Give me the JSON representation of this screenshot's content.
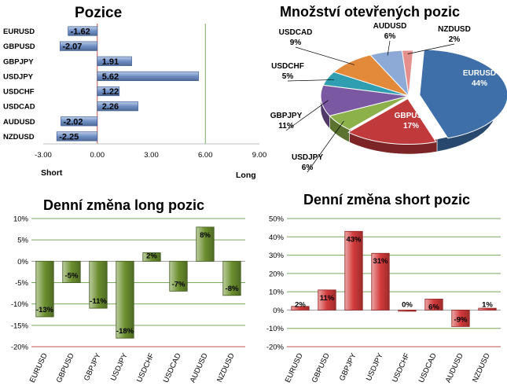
{
  "chart_data": [
    {
      "type": "bar",
      "orientation": "horizontal",
      "title": "Pozice",
      "categories": [
        "EURUSD",
        "GBPUSD",
        "GBPJPY",
        "USDJPY",
        "USDCHF",
        "USDCAD",
        "AUDUSD",
        "NZDUSD"
      ],
      "values": [
        -1.62,
        -2.07,
        1.91,
        5.62,
        1.22,
        2.26,
        -2.02,
        -2.25
      ],
      "value_labels": [
        "-1.62",
        "-2.07",
        "1.91",
        "5.62",
        "1.22",
        "2.26",
        "-2.02",
        "-2.25"
      ],
      "xlim": [
        -3,
        9
      ],
      "xticks": [
        -3,
        0,
        3,
        6,
        9
      ],
      "xtick_labels": [
        "-3.00",
        "0.00",
        "3.00",
        "6.00",
        "9.00"
      ],
      "axis_end_labels": {
        "left": "Short",
        "right": "Long"
      },
      "bar_color": "#6f8fc6"
    },
    {
      "type": "pie",
      "title": "Množství otevřených pozic",
      "labels": [
        "EURUSD",
        "GBPUSD",
        "USDJPY",
        "GBPJPY",
        "USDCHF",
        "USDCAD",
        "AUDUSD",
        "NZDUSD"
      ],
      "values": [
        44,
        17,
        6,
        11,
        5,
        9,
        6,
        2
      ],
      "value_labels": [
        "44%",
        "17%",
        "6%",
        "11%",
        "5%",
        "9%",
        "6%",
        "2%"
      ],
      "colors": [
        "#3f6fa8",
        "#c0393b",
        "#8cb04a",
        "#7b58a2",
        "#2f9eb0",
        "#e3893a",
        "#8da9d6",
        "#e58f8d"
      ]
    },
    {
      "type": "bar",
      "title": "Denní změna long pozic",
      "categories": [
        "EURUSD",
        "GBPUSD",
        "GBPJPY",
        "USDJPY",
        "USDCHF",
        "USDCAD",
        "AUDUSD",
        "NZDUSD"
      ],
      "values": [
        -13,
        -5,
        -11,
        -18,
        2,
        -7,
        8,
        -8
      ],
      "value_labels": [
        "-13%",
        "-5%",
        "-11%",
        "-18%",
        "2%",
        "-7%",
        "8%",
        "-8%"
      ],
      "ylim": [
        -20,
        10
      ],
      "yticks": [
        -20,
        -15,
        -10,
        -5,
        0,
        5,
        10
      ],
      "ytick_labels": [
        "-20%",
        "-15%",
        "-10%",
        "-5%",
        "0%",
        "5%",
        "10%"
      ],
      "bar_color": "#6b8f2e"
    },
    {
      "type": "bar",
      "title": "Denní změna short pozic",
      "categories": [
        "EURUSD",
        "GBPUSD",
        "GBPJPY",
        "USDJPY",
        "USDCHF",
        "USDCAD",
        "AUDUSD",
        "NZDUSD"
      ],
      "values": [
        2,
        11,
        43,
        31,
        0,
        6,
        -9,
        1
      ],
      "value_labels": [
        "2%",
        "11%",
        "43%",
        "31%",
        "0%",
        "6%",
        "-9%",
        "1%"
      ],
      "ylim": [
        -20,
        50
      ],
      "yticks": [
        -20,
        -10,
        0,
        10,
        20,
        30,
        40,
        50
      ],
      "ytick_labels": [
        "-20%",
        "-10%",
        "0%",
        "10%",
        "20%",
        "30%",
        "40%",
        "50%"
      ],
      "bar_color": "#d23a3a"
    }
  ]
}
